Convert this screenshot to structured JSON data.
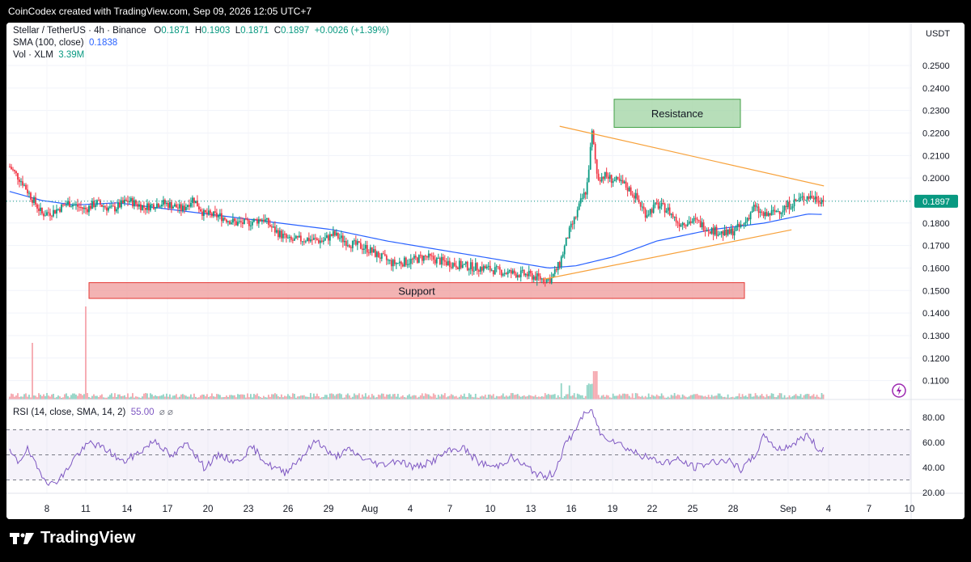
{
  "header": {
    "text": "CoinCodex created with TradingView.com, Sep 09, 2026 12:05 UTC+7"
  },
  "legend": {
    "title": "Stellar / TetherUS · 4h · Binance",
    "o_label": "O",
    "o": "0.1871",
    "h_label": "H",
    "h": "0.1903",
    "l_label": "L",
    "l": "0.1871",
    "c_label": "C",
    "c": "0.1897",
    "change": "+0.0026 (+1.39%)",
    "sma_label": "SMA (100, close)",
    "sma_value": "0.1838",
    "vol_label": "Vol · XLM",
    "vol_value": "3.39M",
    "rsi_label": "RSI (14, close, SMA, 14, 2)",
    "rsi_value": "55.00",
    "rsi_extra": "⌀ ⌀"
  },
  "currency": "USDT",
  "last_price": "0.1897",
  "annotations": {
    "resistance": "Resistance",
    "support": "Support"
  },
  "footer": {
    "brand": "TradingView"
  },
  "colors": {
    "up": "#089981",
    "down": "#f23645",
    "sma": "#2962ff",
    "trend": "#f7a13a",
    "rsi": "#7e57c2"
  },
  "chart_data": [
    {
      "type": "candlestick",
      "title": "Stellar / TetherUS · 4h · Binance",
      "ylim": [
        0.1,
        0.25
      ],
      "yticks": [
        "0.2500",
        "0.2400",
        "0.2300",
        "0.2200",
        "0.2100",
        "0.2000",
        "0.1900",
        "0.1800",
        "0.1700",
        "0.1600",
        "0.1500",
        "0.1400",
        "0.1300",
        "0.1200",
        "0.1100"
      ],
      "xticks": [
        "8",
        "11",
        "14",
        "17",
        "20",
        "23",
        "26",
        "29",
        "Aug",
        "4",
        "7",
        "10",
        "13",
        "16",
        "19",
        "22",
        "25",
        "28",
        "Sep",
        "4",
        "7",
        "10"
      ],
      "price_path": [
        [
          0,
          0.205
        ],
        [
          12,
          0.198
        ],
        [
          18,
          0.193
        ],
        [
          30,
          0.184
        ],
        [
          40,
          0.185
        ],
        [
          55,
          0.189
        ],
        [
          70,
          0.186
        ],
        [
          80,
          0.189
        ],
        [
          95,
          0.186
        ],
        [
          110,
          0.19
        ],
        [
          125,
          0.187
        ],
        [
          140,
          0.189
        ],
        [
          150,
          0.188
        ],
        [
          160,
          0.186
        ],
        [
          170,
          0.191
        ],
        [
          180,
          0.184
        ],
        [
          195,
          0.183
        ],
        [
          210,
          0.18
        ],
        [
          220,
          0.18
        ],
        [
          235,
          0.182
        ],
        [
          245,
          0.177
        ],
        [
          260,
          0.172
        ],
        [
          275,
          0.173
        ],
        [
          290,
          0.172
        ],
        [
          300,
          0.175
        ],
        [
          315,
          0.171
        ],
        [
          330,
          0.169
        ],
        [
          340,
          0.166
        ],
        [
          355,
          0.162
        ],
        [
          370,
          0.163
        ],
        [
          385,
          0.165
        ],
        [
          400,
          0.163
        ],
        [
          420,
          0.161
        ],
        [
          440,
          0.16
        ],
        [
          460,
          0.158
        ],
        [
          480,
          0.157
        ],
        [
          495,
          0.155
        ],
        [
          502,
          0.155
        ],
        [
          510,
          0.162
        ],
        [
          518,
          0.175
        ],
        [
          525,
          0.183
        ],
        [
          530,
          0.19
        ],
        [
          535,
          0.195
        ],
        [
          540,
          0.22
        ],
        [
          545,
          0.2
        ],
        [
          552,
          0.201
        ],
        [
          560,
          0.199
        ],
        [
          570,
          0.197
        ],
        [
          580,
          0.192
        ],
        [
          590,
          0.184
        ],
        [
          600,
          0.188
        ],
        [
          610,
          0.186
        ],
        [
          620,
          0.18
        ],
        [
          635,
          0.181
        ],
        [
          650,
          0.177
        ],
        [
          665,
          0.175
        ],
        [
          680,
          0.179
        ],
        [
          690,
          0.187
        ],
        [
          700,
          0.183
        ],
        [
          715,
          0.186
        ],
        [
          730,
          0.19
        ],
        [
          740,
          0.192
        ],
        [
          748,
          0.191
        ],
        [
          755,
          0.19
        ]
      ],
      "sma_path": [
        [
          0,
          0.194
        ],
        [
          30,
          0.19
        ],
        [
          60,
          0.188
        ],
        [
          100,
          0.189
        ],
        [
          150,
          0.186
        ],
        [
          200,
          0.183
        ],
        [
          250,
          0.18
        ],
        [
          300,
          0.177
        ],
        [
          350,
          0.172
        ],
        [
          400,
          0.168
        ],
        [
          450,
          0.164
        ],
        [
          500,
          0.16
        ],
        [
          525,
          0.161
        ],
        [
          560,
          0.165
        ],
        [
          600,
          0.172
        ],
        [
          650,
          0.177
        ],
        [
          700,
          0.18
        ],
        [
          740,
          0.184
        ],
        [
          755,
          0.1838
        ]
      ],
      "resistance_line": [
        [
          510,
          0.223
        ],
        [
          755,
          0.1965
        ]
      ],
      "support_line": [
        [
          495,
          0.155
        ],
        [
          725,
          0.177
        ]
      ],
      "annotations": [
        {
          "label": "Resistance",
          "y_range": [
            0.2225,
            0.235
          ]
        },
        {
          "label": "Support",
          "y_range": [
            0.1465,
            0.1535
          ]
        }
      ],
      "last_price": 0.1897
    },
    {
      "type": "line",
      "title": "RSI (14, close, SMA, 14, 2)",
      "ylim": [
        15,
        88
      ],
      "yticks": [
        "80.00",
        "60.00",
        "40.00",
        "20.00"
      ],
      "bands": [
        30,
        50,
        70
      ],
      "rsi_path": [
        [
          0,
          52
        ],
        [
          8,
          44
        ],
        [
          16,
          55
        ],
        [
          25,
          40
        ],
        [
          38,
          26
        ],
        [
          50,
          34
        ],
        [
          60,
          48
        ],
        [
          75,
          60
        ],
        [
          90,
          54
        ],
        [
          105,
          44
        ],
        [
          120,
          52
        ],
        [
          135,
          62
        ],
        [
          150,
          48
        ],
        [
          165,
          60
        ],
        [
          180,
          40
        ],
        [
          195,
          50
        ],
        [
          210,
          44
        ],
        [
          225,
          56
        ],
        [
          240,
          42
        ],
        [
          255,
          36
        ],
        [
          270,
          48
        ],
        [
          285,
          62
        ],
        [
          300,
          48
        ],
        [
          315,
          54
        ],
        [
          330,
          46
        ],
        [
          345,
          42
        ],
        [
          360,
          46
        ],
        [
          375,
          40
        ],
        [
          390,
          44
        ],
        [
          405,
          52
        ],
        [
          420,
          56
        ],
        [
          435,
          44
        ],
        [
          450,
          40
        ],
        [
          465,
          48
        ],
        [
          480,
          40
        ],
        [
          495,
          32
        ],
        [
          505,
          36
        ],
        [
          515,
          58
        ],
        [
          522,
          66
        ],
        [
          530,
          80
        ],
        [
          540,
          86
        ],
        [
          548,
          66
        ],
        [
          560,
          62
        ],
        [
          575,
          54
        ],
        [
          590,
          48
        ],
        [
          605,
          44
        ],
        [
          620,
          46
        ],
        [
          635,
          40
        ],
        [
          650,
          44
        ],
        [
          665,
          46
        ],
        [
          678,
          38
        ],
        [
          690,
          48
        ],
        [
          700,
          66
        ],
        [
          712,
          54
        ],
        [
          725,
          58
        ],
        [
          740,
          66
        ],
        [
          750,
          54
        ],
        [
          755,
          55
        ]
      ]
    }
  ]
}
